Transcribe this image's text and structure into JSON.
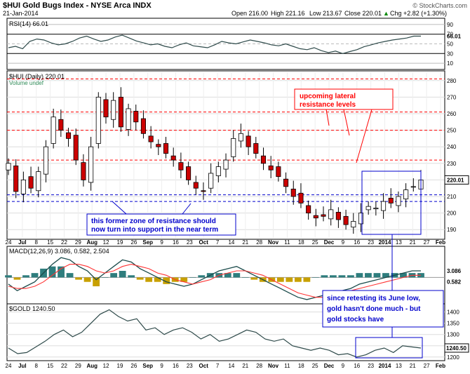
{
  "header": {
    "title": "$HUI Gold Bugs Index - NYSE Arca  INDX",
    "date": "21-Jan-2014",
    "quote": "Open 216.00  High 221.16  Low 213.67  Close 220.01  Chg +2.82 (+1.30%)",
    "open": "Open 216.00",
    "high": "High 221.16",
    "low": "Low 213.67",
    "close": "Close 220.01",
    "change": "Chg +2.82 (+1.30%)",
    "change_arrow": "▲",
    "watermark": "© StockCharts.com"
  },
  "colors": {
    "up": "#ffffff",
    "down": "#cc0000",
    "lateral": "#ff0000",
    "support": "#0000cc",
    "macd_line": "#1a4a4a",
    "signal_line": "#ff3333",
    "hist": "#c8a000",
    "price_line": "#2e4a4a"
  },
  "chart_data": [
    {
      "type": "line",
      "panel": "rsi",
      "title": "RSI(14) 66.01",
      "ylim": [
        0,
        100
      ],
      "yticks": [
        10,
        30,
        50,
        70,
        90
      ],
      "last_value_label": "66.01",
      "series": [
        {
          "name": "RSI(14)",
          "values": [
            42,
            45,
            40,
            55,
            60,
            58,
            52,
            48,
            50,
            55,
            62,
            66,
            60,
            55,
            58,
            64,
            68,
            62,
            56,
            52,
            48,
            50,
            45,
            42,
            48,
            52,
            46,
            44,
            42,
            48,
            55,
            52,
            50,
            54,
            58,
            55,
            52,
            48,
            46,
            50,
            45,
            40,
            38,
            42,
            36,
            32,
            35,
            30,
            34,
            38,
            44,
            48,
            52,
            55,
            58,
            60,
            62,
            66,
            66
          ]
        }
      ]
    },
    {
      "type": "candlestick",
      "panel": "price",
      "title": "$HUI (Daily) 220.01",
      "sublabel": "Volume undef",
      "ylim": [
        185,
        285
      ],
      "yticks": [
        190,
        200,
        210,
        220,
        230,
        240,
        250,
        260,
        270,
        280
      ],
      "last_value_label": "220.01",
      "lateral_levels": [
        281,
        261,
        250,
        232
      ],
      "support_levels": [
        211,
        207
      ],
      "x_labels": [
        "24",
        "Jul",
        "8",
        "15",
        "22",
        "29",
        "Aug",
        "12",
        "19",
        "26",
        "Sep",
        "9",
        "16",
        "23",
        "Oct",
        "7",
        "14",
        "21",
        "28",
        "Nov",
        "11",
        "18",
        "25",
        "Dec",
        "9",
        "16",
        "23",
        "2014",
        "13",
        "21",
        "27",
        "Feb"
      ],
      "annotations": [
        {
          "text": "upcoming lateral",
          "color": "#ff0000"
        },
        {
          "text": "resistance levels",
          "color": "#ff0000"
        },
        {
          "text": "this former zone of resistance should",
          "color": "#0000cc"
        },
        {
          "text": "now turn into support in the near term",
          "color": "#0000cc"
        }
      ],
      "closes": [
        230,
        213,
        220,
        215,
        225,
        240,
        258,
        250,
        245,
        232,
        220,
        240,
        270,
        258,
        268,
        252,
        263,
        255,
        248,
        243,
        240,
        236,
        232,
        226,
        220,
        215,
        213,
        224,
        228,
        232,
        245,
        248,
        240,
        236,
        230,
        226,
        222,
        216,
        210,
        206,
        200,
        197,
        198,
        202,
        196,
        193,
        195,
        200,
        204,
        203,
        207,
        206,
        210,
        214,
        216,
        220
      ]
    },
    {
      "type": "line",
      "panel": "macd",
      "title": "MACD(12,26,9) 3.086, 0.582, 2.504",
      "value_labels": [
        "3.086",
        "0.582"
      ],
      "series": [
        {
          "name": "MACD(12,26,9)",
          "values": [
            -3,
            -6,
            -4,
            -2,
            2,
            6,
            9,
            8,
            5,
            3,
            -1,
            2,
            5,
            8,
            7,
            4,
            2,
            0,
            -2,
            -3,
            -4,
            -3,
            -1,
            1,
            3,
            4,
            5,
            3,
            1,
            -1,
            -3,
            -5,
            -7,
            -9,
            -10,
            -9,
            -8,
            -7,
            -6,
            -5,
            -3,
            -2,
            -1,
            0,
            1,
            2,
            3,
            3
          ]
        },
        {
          "name": "signal",
          "values": [
            -4,
            -5,
            -5,
            -4,
            -2,
            1,
            4,
            6,
            6,
            5,
            3,
            2,
            3,
            5,
            6,
            5,
            4,
            2,
            1,
            -1,
            -2,
            -3,
            -2,
            -1,
            1,
            2,
            3,
            3,
            2,
            1,
            -1,
            -3,
            -5,
            -7,
            -8,
            -9,
            -9,
            -8,
            -7,
            -6,
            -5,
            -4,
            -3,
            -2,
            -1,
            0,
            1,
            1
          ]
        }
      ]
    },
    {
      "type": "line",
      "panel": "gold",
      "title": "$GOLD 1240.50",
      "ylim": [
        1190,
        1430
      ],
      "yticks": [
        1200,
        1250,
        1300,
        1350,
        1400
      ],
      "last_value_label": "1240.50",
      "annotations": [
        {
          "text": "since retesting its June low,",
          "color": "#0000cc"
        },
        {
          "text": "gold hasn't done much - but",
          "color": "#0000cc"
        },
        {
          "text": "gold stocks have",
          "color": "#0000cc"
        }
      ],
      "series": [
        {
          "name": "$GOLD",
          "values": [
            1240,
            1215,
            1220,
            1245,
            1270,
            1300,
            1320,
            1290,
            1310,
            1350,
            1390,
            1410,
            1380,
            1360,
            1370,
            1320,
            1330,
            1300,
            1320,
            1330,
            1310,
            1280,
            1300,
            1270,
            1280,
            1300,
            1320,
            1310,
            1280,
            1270,
            1280,
            1250,
            1240,
            1230,
            1240,
            1230,
            1210,
            1215,
            1200,
            1210,
            1230,
            1240,
            1220,
            1250,
            1245,
            1240
          ]
        }
      ]
    }
  ]
}
